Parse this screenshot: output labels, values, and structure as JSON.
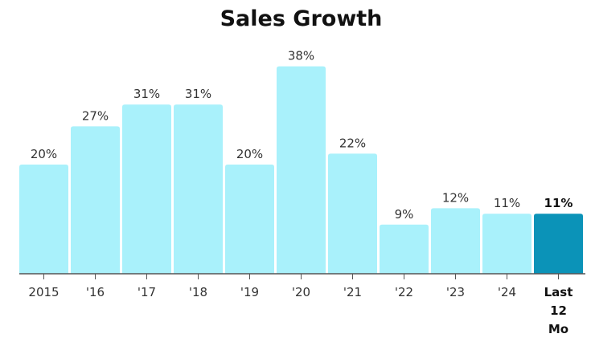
{
  "chart_data": {
    "type": "bar",
    "title": "Sales Growth",
    "categories": [
      "2015",
      "'16",
      "'17",
      "'18",
      "'19",
      "'20",
      "'21",
      "'22",
      "'23",
      "'24",
      "Last 12 Mo"
    ],
    "values": [
      20,
      27,
      31,
      31,
      20,
      38,
      22,
      9,
      12,
      11,
      11
    ],
    "value_labels": [
      "20%",
      "27%",
      "31%",
      "31%",
      "20%",
      "38%",
      "22%",
      "9%",
      "12%",
      "11%",
      "11%"
    ],
    "xlabel": "",
    "ylabel": "",
    "ylim": [
      0,
      38
    ],
    "grid": false,
    "highlight_index": 10,
    "colors": {
      "bar": "#a9f1fb",
      "highlight": "#0b93b8",
      "axis": "#555555"
    }
  }
}
